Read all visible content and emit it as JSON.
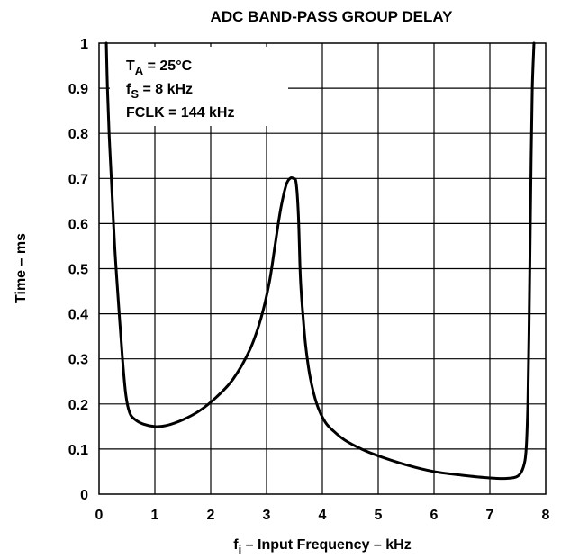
{
  "chart_data": {
    "type": "line",
    "title": "ADC BAND-PASS GROUP DELAY",
    "xlabel": {
      "main": "f",
      "sub": "i",
      "rest": " – Input Frequency – kHz"
    },
    "ylabel": "Time – ms",
    "xlim": [
      0,
      8
    ],
    "ylim": [
      0,
      1
    ],
    "xticks": [
      "0",
      "1",
      "2",
      "3",
      "4",
      "5",
      "6",
      "7",
      "8"
    ],
    "yticks": [
      "0",
      "0.1",
      "0.2",
      "0.3",
      "0.4",
      "0.5",
      "0.6",
      "0.7",
      "0.8",
      "0.9",
      "1"
    ],
    "grid": true,
    "annotations": [
      {
        "main": "T",
        "sub": "A",
        "rest": " = 25°C"
      },
      {
        "main": "f",
        "sub": "S",
        "rest": " = 8 kHz"
      },
      {
        "main": "FCLK = 144 kHz",
        "sub": "",
        "rest": ""
      }
    ],
    "series": [
      {
        "color": "#000000",
        "x": [
          0.13,
          0.15,
          0.18,
          0.22,
          0.28,
          0.35,
          0.42,
          0.48,
          0.55,
          0.65,
          0.8,
          1.0,
          1.2,
          1.5,
          1.8,
          2.1,
          2.4,
          2.7,
          2.9,
          3.05,
          3.15,
          3.25,
          3.35,
          3.42,
          3.48,
          3.53,
          3.57,
          3.6,
          3.62,
          3.65,
          3.7,
          3.78,
          3.9,
          4.05,
          4.2,
          4.4,
          4.7,
          5.0,
          5.5,
          6.0,
          6.5,
          7.0,
          7.3,
          7.5,
          7.6,
          7.65,
          7.68,
          7.7,
          7.72,
          7.74,
          7.76,
          7.79
        ],
        "y": [
          1.0,
          0.9,
          0.8,
          0.7,
          0.55,
          0.42,
          0.3,
          0.22,
          0.18,
          0.165,
          0.155,
          0.15,
          0.152,
          0.165,
          0.185,
          0.215,
          0.255,
          0.32,
          0.39,
          0.47,
          0.55,
          0.63,
          0.685,
          0.7,
          0.7,
          0.69,
          0.62,
          0.5,
          0.45,
          0.4,
          0.33,
          0.26,
          0.2,
          0.16,
          0.14,
          0.12,
          0.1,
          0.085,
          0.065,
          0.05,
          0.042,
          0.036,
          0.035,
          0.04,
          0.06,
          0.1,
          0.2,
          0.35,
          0.55,
          0.75,
          0.9,
          1.0
        ]
      }
    ]
  }
}
